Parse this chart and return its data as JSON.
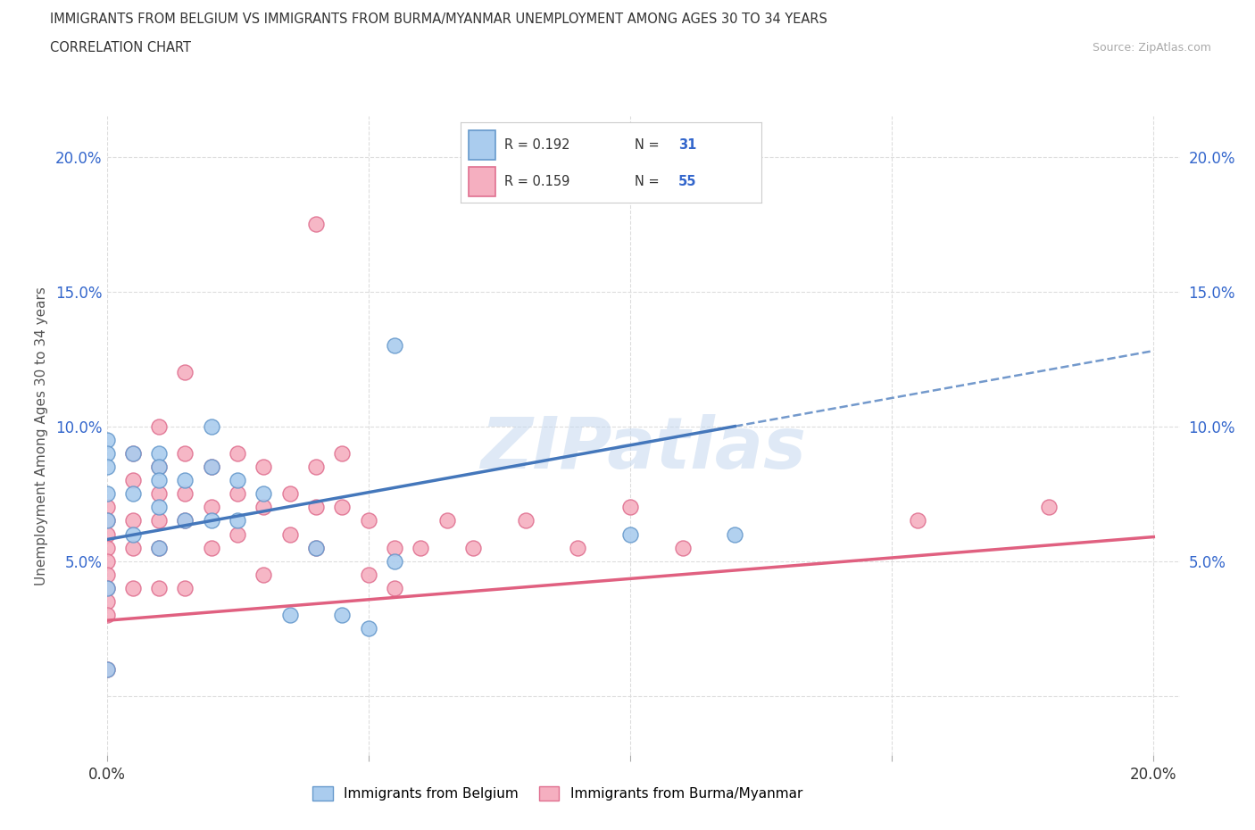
{
  "title_line1": "IMMIGRANTS FROM BELGIUM VS IMMIGRANTS FROM BURMA/MYANMAR UNEMPLOYMENT AMONG AGES 30 TO 34 YEARS",
  "title_line2": "CORRELATION CHART",
  "source_text": "Source: ZipAtlas.com",
  "ylabel": "Unemployment Among Ages 30 to 34 years",
  "xlim": [
    0.0,
    0.205
  ],
  "ylim": [
    -0.022,
    0.215
  ],
  "xtick_pos": [
    0.0,
    0.05,
    0.1,
    0.15,
    0.2
  ],
  "ytick_pos": [
    0.0,
    0.05,
    0.1,
    0.15,
    0.2
  ],
  "xticklabels": [
    "0.0%",
    "",
    "",
    "",
    "20.0%"
  ],
  "yticklabels": [
    "",
    "5.0%",
    "10.0%",
    "15.0%",
    "20.0%"
  ],
  "watermark": "ZIPatlas",
  "belgium_color": "#aaccee",
  "burma_color": "#f5afc0",
  "belgium_edge_color": "#6699cc",
  "burma_edge_color": "#e07090",
  "belgium_line_color": "#4477bb",
  "burma_line_color": "#e06080",
  "R_belgium": 0.192,
  "N_belgium": 31,
  "R_burma": 0.159,
  "N_burma": 55,
  "legend_text_color": "#333333",
  "legend_N_color": "#3366cc",
  "grid_color": "#dddddd",
  "tick_color": "#3366cc",
  "belgium_x": [
    0.0,
    0.0,
    0.0,
    0.0,
    0.0,
    0.0,
    0.0,
    0.005,
    0.005,
    0.005,
    0.01,
    0.01,
    0.01,
    0.01,
    0.01,
    0.015,
    0.015,
    0.02,
    0.02,
    0.02,
    0.025,
    0.025,
    0.03,
    0.035,
    0.04,
    0.045,
    0.05,
    0.055,
    0.055,
    0.1,
    0.12
  ],
  "belgium_y": [
    0.095,
    0.09,
    0.085,
    0.075,
    0.065,
    0.04,
    0.01,
    0.09,
    0.075,
    0.06,
    0.09,
    0.085,
    0.08,
    0.07,
    0.055,
    0.08,
    0.065,
    0.1,
    0.085,
    0.065,
    0.08,
    0.065,
    0.075,
    0.03,
    0.055,
    0.03,
    0.025,
    0.13,
    0.05,
    0.06,
    0.06
  ],
  "burma_x": [
    0.0,
    0.0,
    0.0,
    0.0,
    0.0,
    0.0,
    0.0,
    0.0,
    0.0,
    0.0,
    0.005,
    0.005,
    0.005,
    0.005,
    0.005,
    0.01,
    0.01,
    0.01,
    0.01,
    0.01,
    0.01,
    0.015,
    0.015,
    0.015,
    0.015,
    0.015,
    0.02,
    0.02,
    0.02,
    0.025,
    0.025,
    0.025,
    0.03,
    0.03,
    0.03,
    0.035,
    0.035,
    0.04,
    0.04,
    0.04,
    0.045,
    0.045,
    0.05,
    0.05,
    0.055,
    0.055,
    0.06,
    0.065,
    0.07,
    0.08,
    0.09,
    0.1,
    0.11,
    0.155,
    0.18
  ],
  "burma_y": [
    0.07,
    0.065,
    0.06,
    0.055,
    0.05,
    0.045,
    0.04,
    0.035,
    0.03,
    0.01,
    0.09,
    0.08,
    0.065,
    0.055,
    0.04,
    0.1,
    0.085,
    0.075,
    0.065,
    0.055,
    0.04,
    0.12,
    0.09,
    0.075,
    0.065,
    0.04,
    0.085,
    0.07,
    0.055,
    0.09,
    0.075,
    0.06,
    0.085,
    0.07,
    0.045,
    0.075,
    0.06,
    0.085,
    0.07,
    0.055,
    0.09,
    0.07,
    0.065,
    0.045,
    0.055,
    0.04,
    0.055,
    0.065,
    0.055,
    0.065,
    0.055,
    0.07,
    0.055,
    0.065,
    0.07
  ],
  "burma_outlier_x": [
    0.04
  ],
  "burma_outlier_y": [
    0.175
  ],
  "belgium_slope": 0.35,
  "belgium_intercept": 0.058,
  "burma_slope": 0.155,
  "burma_intercept": 0.028
}
